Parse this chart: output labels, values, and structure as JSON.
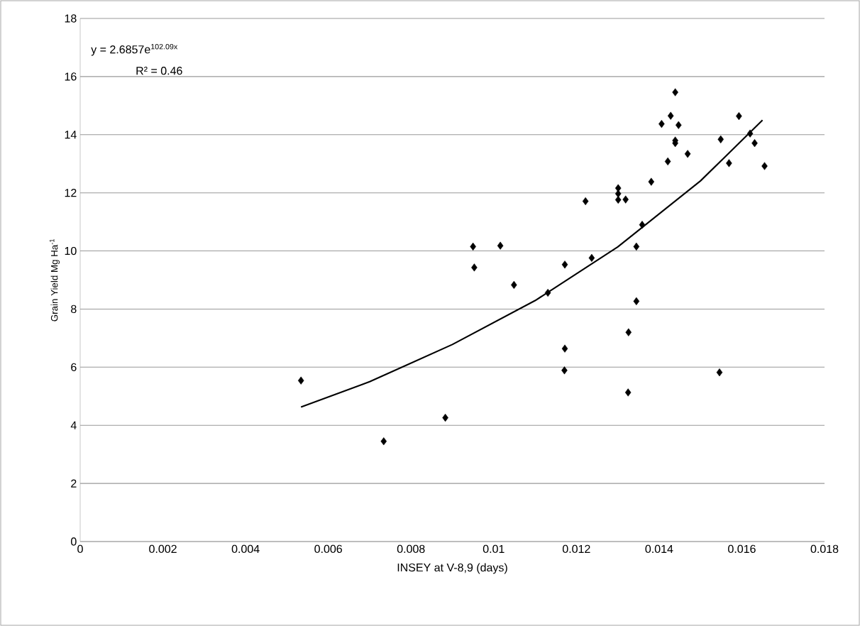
{
  "chart_data": {
    "type": "scatter",
    "xlabel": "INSEY at V-8,9 (days)",
    "ylabel": "Grain Yield Mg Ha$^{-1}$",
    "xlim": [
      0,
      0.018
    ],
    "ylim": [
      0,
      18
    ],
    "xticks": [
      0,
      0.002,
      0.004,
      0.006,
      0.008,
      0.01,
      0.012,
      0.014,
      0.016,
      0.018
    ],
    "yticks": [
      0,
      2,
      4,
      6,
      8,
      10,
      12,
      14,
      16,
      18
    ],
    "grid": "y",
    "marker": "diamond",
    "annotations": [
      "y = 2.6857e$^{102.09x}$",
      "R² = 0.46"
    ],
    "series": [
      {
        "color": "#000000",
        "x": [
          0.00534,
          0.00734,
          0.00883,
          0.0095,
          0.00953,
          0.01016,
          0.01049,
          0.01131,
          0.01172,
          0.01172,
          0.01171,
          0.01439,
          0.01428,
          0.01406,
          0.01447,
          0.01439,
          0.01439,
          0.01469,
          0.01421,
          0.01381,
          0.01301,
          0.01301,
          0.01301,
          0.01319,
          0.01222,
          0.01359,
          0.01345,
          0.01237,
          0.01345,
          0.01326,
          0.01325,
          0.01546,
          0.01549,
          0.01593,
          0.0162,
          0.01631,
          0.01569,
          0.01655
        ],
        "values": [
          5.54,
          3.45,
          4.26,
          10.15,
          9.43,
          10.18,
          8.83,
          8.56,
          9.53,
          6.64,
          5.89,
          15.46,
          14.65,
          14.37,
          14.33,
          13.8,
          13.71,
          13.34,
          13.08,
          12.38,
          12.16,
          11.97,
          11.76,
          11.77,
          11.71,
          10.9,
          10.15,
          9.76,
          8.27,
          7.2,
          5.13,
          5.82,
          13.84,
          14.64,
          14.04,
          13.71,
          13.02,
          12.92
        ]
      },
      {
        "type": "line",
        "color": "#000000",
        "marker": "none",
        "x": [
          0.00534,
          0.007,
          0.009,
          0.011,
          0.013,
          0.015,
          0.0165
        ],
        "values": [
          4.63,
          5.5,
          6.78,
          8.29,
          10.14,
          12.41,
          14.5
        ]
      }
    ]
  }
}
